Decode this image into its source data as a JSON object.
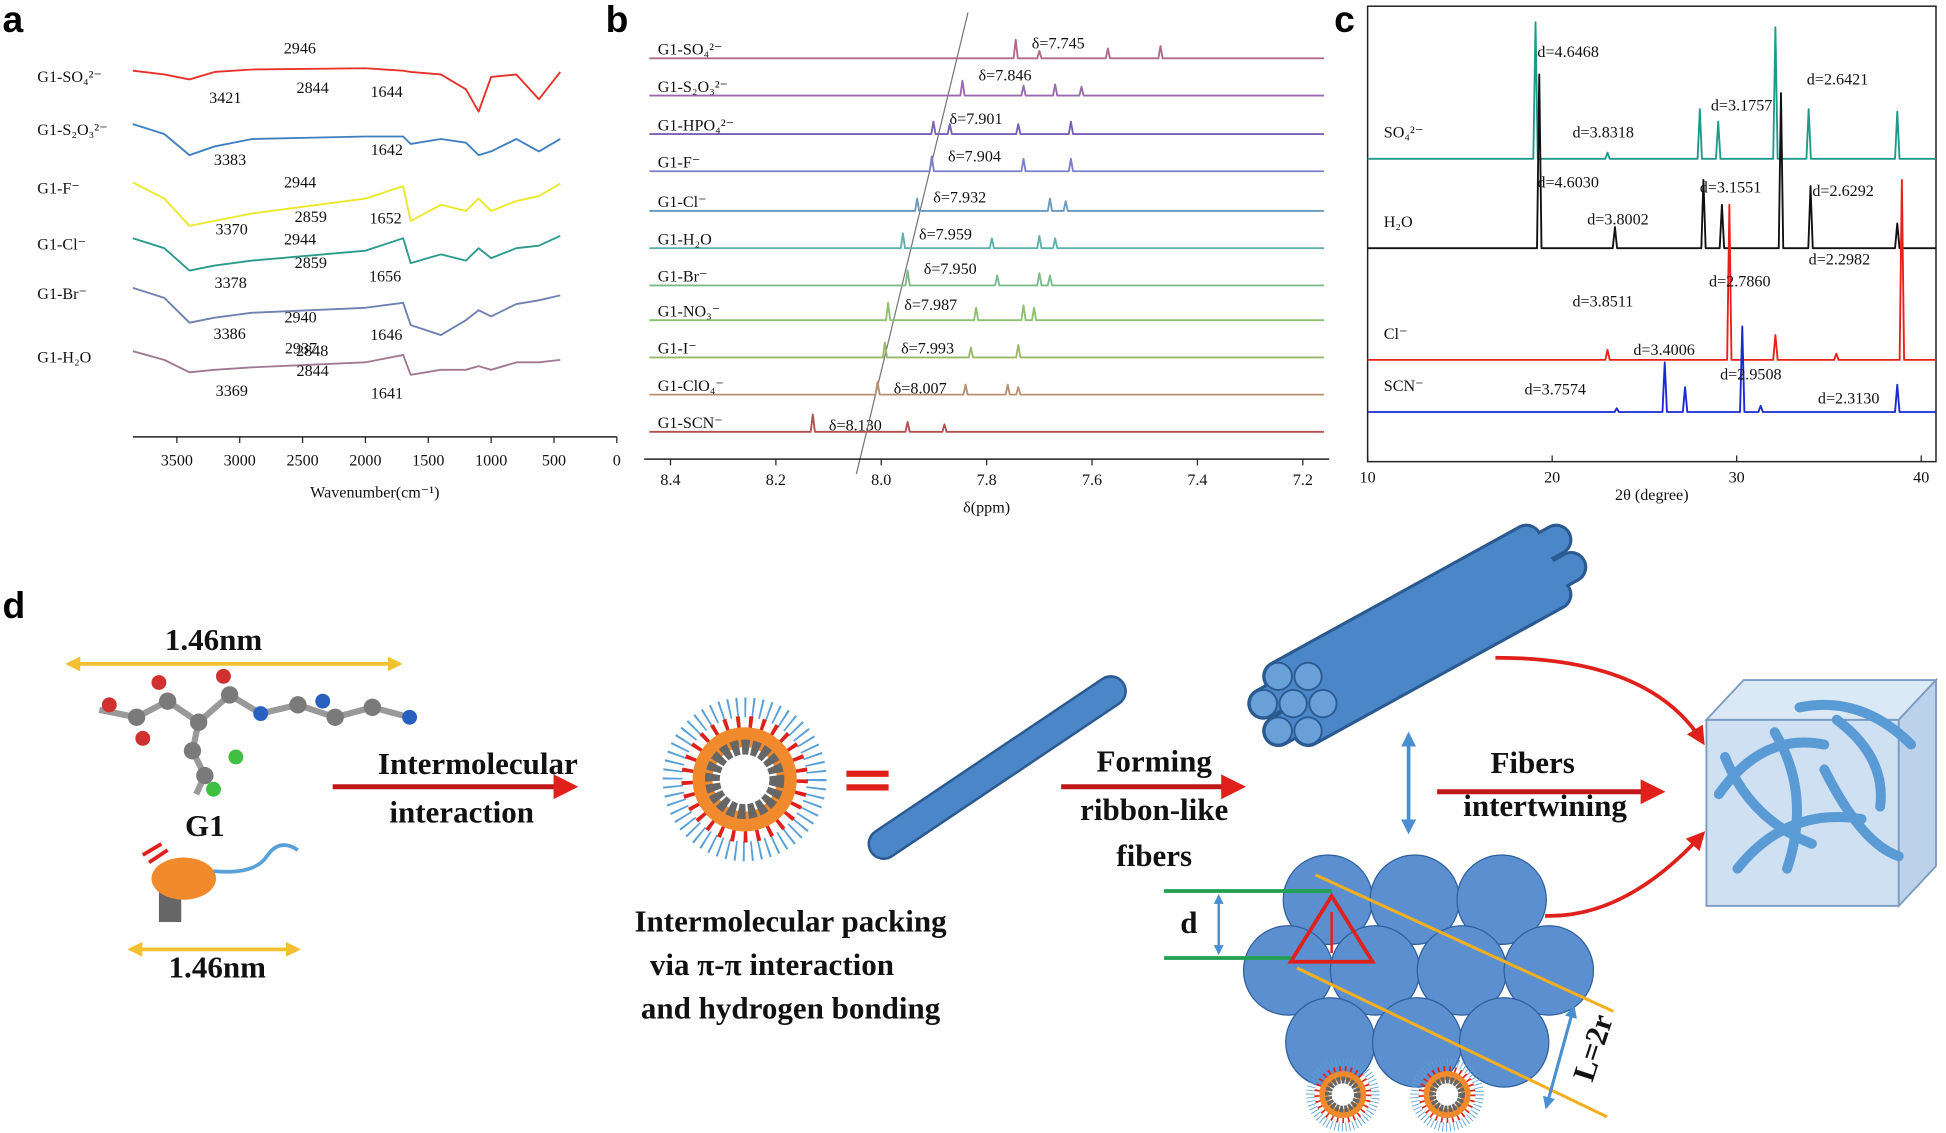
{
  "panel_labels": [
    "a",
    "b",
    "c",
    "d"
  ],
  "chart_data": [
    {
      "type": "line",
      "xlabel": "Wavenumber(cm⁻¹)",
      "xlim": [
        3850,
        0
      ],
      "ylim": [
        0,
        330
      ],
      "xticks": [
        3500,
        3000,
        2500,
        2000,
        1500,
        1000,
        500,
        0
      ],
      "x": [
        3850,
        3600,
        3400,
        3200,
        2900,
        2000,
        1700,
        1640,
        1400,
        1200,
        1100,
        1000,
        800,
        620,
        450
      ],
      "series": [
        {
          "name": "G1-SO₄²⁻",
          "color": "#e8302a",
          "values": [
            295,
            292,
            288,
            294,
            296,
            297,
            295,
            294,
            292,
            280,
            262,
            290,
            292,
            272,
            294
          ]
        },
        {
          "name": "G1-S₂O₃²⁻",
          "color": "#3f7fbf",
          "values": [
            252,
            244,
            227,
            234,
            240,
            242,
            242,
            236,
            240,
            237,
            227,
            230,
            240,
            230,
            240
          ]
        },
        {
          "name": "G1-F⁻",
          "color": "#e9e82a",
          "values": [
            205,
            192,
            170,
            174,
            180,
            192,
            202,
            174,
            187,
            182,
            192,
            182,
            190,
            194,
            204
          ]
        },
        {
          "name": "G1-Cl⁻",
          "color": "#2a9a8a",
          "values": [
            160,
            152,
            134,
            138,
            142,
            150,
            160,
            140,
            147,
            142,
            152,
            144,
            152,
            154,
            162
          ]
        },
        {
          "name": "G1-Br⁻",
          "color": "#7080b0",
          "values": [
            120,
            112,
            92,
            96,
            100,
            104,
            108,
            90,
            82,
            94,
            102,
            97,
            107,
            110,
            114
          ]
        },
        {
          "name": "G1-H₂O",
          "color": "#a07890",
          "values": [
            69,
            62,
            52,
            54,
            56,
            60,
            66,
            50,
            54,
            54,
            57,
            54,
            60,
            60,
            62
          ]
        }
      ],
      "annotations": [
        {
          "x": 2946,
          "y": 312
        },
        {
          "x": 3421,
          "y": 272
        },
        {
          "x": 2844,
          "y": 280
        },
        {
          "x": 1644,
          "y": 277
        },
        {
          "x": 3383,
          "y": 222
        },
        {
          "x": 1642,
          "y": 230
        },
        {
          "x": 2944,
          "y": 204
        },
        {
          "x": 3370,
          "y": 166
        },
        {
          "x": 2859,
          "y": 176
        },
        {
          "x": 1652,
          "y": 175
        },
        {
          "x": 2944,
          "y": 158
        },
        {
          "x": 3378,
          "y": 123
        },
        {
          "x": 2859,
          "y": 139
        },
        {
          "x": 1656,
          "y": 128
        },
        {
          "x": 2940,
          "y": 95
        },
        {
          "x": 3386,
          "y": 82
        },
        {
          "x": 2848,
          "y": 68
        },
        {
          "x": 1646,
          "y": 81
        },
        {
          "x": 2937,
          "y": 70
        },
        {
          "x": 3369,
          "y": 36
        },
        {
          "x": 2844,
          "y": 52
        },
        {
          "x": 1641,
          "y": 34
        }
      ]
    },
    {
      "type": "line",
      "xlabel": "δ(ppm)",
      "xlim": [
        8.45,
        7.15
      ],
      "ylim": [
        0,
        345
      ],
      "xticks": [
        8.4,
        8.2,
        {
          "value": 8,
          "label": "8.0"
        },
        7.8,
        7.6,
        7.4,
        7.2
      ],
      "series": [
        {
          "name": "G1-SO₄²⁻",
          "color": "#b06a8a",
          "x": [
            8.44,
            7.749,
            7.745,
            7.741,
            7.704,
            7.7,
            7.696,
            7.574,
            7.57,
            7.566,
            7.474,
            7.47,
            7.466,
            7.16
          ],
          "values": [
            323,
            323,
            338,
            323,
            323,
            329,
            323,
            323,
            331,
            323,
            323,
            333,
            323,
            323
          ]
        },
        {
          "name": "G1-S₂O₃²⁻",
          "color": "#9a6ab0",
          "x": [
            8.44,
            7.85,
            7.846,
            7.842,
            7.734,
            7.73,
            7.726,
            7.674,
            7.67,
            7.666,
            7.624,
            7.62,
            7.616,
            7.16
          ],
          "values": [
            293,
            293,
            305,
            293,
            293,
            301,
            293,
            293,
            302,
            293,
            293,
            300,
            293,
            293
          ]
        },
        {
          "name": "G1-HPO₄²⁻",
          "color": "#7a5fb5",
          "x": [
            8.44,
            7.905,
            7.901,
            7.897,
            7.874,
            7.87,
            7.866,
            7.744,
            7.74,
            7.736,
            7.644,
            7.64,
            7.636,
            7.16
          ],
          "values": [
            262,
            262,
            272,
            262,
            262,
            270,
            262,
            262,
            270,
            262,
            262,
            272,
            262,
            262
          ]
        },
        {
          "name": "G1-F⁻",
          "color": "#7b7fc8",
          "x": [
            8.44,
            7.908,
            7.904,
            7.9,
            7.734,
            7.73,
            7.726,
            7.644,
            7.64,
            7.636,
            7.16
          ],
          "values": [
            232,
            232,
            244,
            232,
            232,
            242,
            232,
            232,
            242,
            232,
            232
          ]
        },
        {
          "name": "G1-Cl⁻",
          "color": "#6a9ac0",
          "x": [
            8.44,
            7.936,
            7.932,
            7.928,
            7.684,
            7.68,
            7.676,
            7.654,
            7.65,
            7.646,
            7.16
          ],
          "values": [
            200,
            200,
            210,
            200,
            200,
            210,
            200,
            200,
            208,
            200,
            200
          ]
        },
        {
          "name": "G1-H₂O",
          "color": "#5fb0a8",
          "x": [
            8.44,
            7.963,
            7.959,
            7.955,
            7.794,
            7.79,
            7.786,
            7.704,
            7.7,
            7.696,
            7.674,
            7.67,
            7.666,
            7.16
          ],
          "values": [
            170,
            170,
            182,
            170,
            170,
            178,
            170,
            170,
            180,
            170,
            170,
            178,
            170,
            170
          ]
        },
        {
          "name": "G1-Br⁻",
          "color": "#7cbc8a",
          "x": [
            8.44,
            7.954,
            7.95,
            7.946,
            7.784,
            7.78,
            7.776,
            7.704,
            7.7,
            7.696,
            7.684,
            7.68,
            7.676,
            7.16
          ],
          "values": [
            140,
            140,
            152,
            140,
            140,
            148,
            140,
            140,
            150,
            140,
            140,
            148,
            140,
            140
          ]
        },
        {
          "name": "G1-NO₃⁻",
          "color": "#8cc070",
          "x": [
            8.44,
            7.991,
            7.987,
            7.983,
            7.824,
            7.82,
            7.816,
            7.734,
            7.73,
            7.726,
            7.714,
            7.71,
            7.706,
            7.16
          ],
          "values": [
            112,
            112,
            126,
            112,
            112,
            122,
            112,
            112,
            124,
            112,
            112,
            122,
            112,
            112
          ]
        },
        {
          "name": "G1-I⁻",
          "color": "#9ab868",
          "x": [
            8.44,
            7.997,
            7.993,
            7.989,
            7.834,
            7.83,
            7.826,
            7.744,
            7.74,
            7.736,
            7.16
          ],
          "values": [
            82,
            82,
            94,
            82,
            82,
            90,
            82,
            82,
            92,
            82,
            82
          ]
        },
        {
          "name": "G1-ClO₄⁻",
          "color": "#b89070",
          "x": [
            8.44,
            8.011,
            8.007,
            8.003,
            7.844,
            7.84,
            7.836,
            7.764,
            7.76,
            7.756,
            7.744,
            7.74,
            7.736,
            7.16
          ],
          "values": [
            52,
            52,
            62,
            52,
            52,
            60,
            52,
            52,
            60,
            52,
            52,
            58,
            52,
            52
          ]
        },
        {
          "name": "G1-SCN⁻",
          "color": "#b05050",
          "x": [
            8.44,
            8.134,
            8.13,
            8.126,
            7.954,
            7.95,
            7.946,
            7.884,
            7.88,
            7.876,
            7.16
          ],
          "values": [
            22,
            22,
            36,
            22,
            22,
            30,
            22,
            22,
            28,
            22,
            22
          ]
        }
      ],
      "annotations": [
        {
          "x": 7.745,
          "y": 334,
          "label": "δ=7.745"
        },
        {
          "x": 7.846,
          "y": 308,
          "label": "δ=7.846"
        },
        {
          "x": 7.901,
          "y": 273,
          "label": "δ=7.901"
        },
        {
          "x": 7.904,
          "y": 243,
          "label": "δ=7.904"
        },
        {
          "x": 7.932,
          "y": 210,
          "label": "δ=7.932"
        },
        {
          "x": 7.959,
          "y": 180,
          "label": "δ=7.959"
        },
        {
          "x": 7.95,
          "y": 152,
          "label": "δ=7.950"
        },
        {
          "x": 7.987,
          "y": 123,
          "label": "δ=7.987"
        },
        {
          "x": 7.993,
          "y": 88,
          "label": "δ=7.993"
        },
        {
          "x": 8.007,
          "y": 56,
          "label": "δ=8.007"
        },
        {
          "x": 8.13,
          "y": 26,
          "label": "δ=8.130"
        }
      ]
    },
    {
      "type": "line",
      "xlabel": "2θ (degree)",
      "xlim": [
        10,
        40.8
      ],
      "ylim": [
        0,
        367
      ],
      "frame": true,
      "xticks": [
        10,
        20,
        30,
        40
      ],
      "series": [
        {
          "name": "SO₄²⁻",
          "color": "#1f9a8a",
          "x": [
            10,
            18.98,
            19.1,
            19.22,
            22.88,
            23,
            23.12,
            27.88,
            28,
            28.12,
            28.88,
            29,
            29.12,
            31.98,
            32.1,
            32.22,
            33.78,
            33.9,
            34.02,
            38.58,
            38.7,
            38.82,
            40.8
          ],
          "values": [
            244,
            244,
            354,
            244,
            244,
            249,
            244,
            244,
            284,
            244,
            244,
            274,
            244,
            244,
            350,
            244,
            244,
            284,
            244,
            244,
            282,
            244,
            244
          ]
        },
        {
          "name": "H₂O",
          "color": "#111111",
          "x": [
            10,
            19.18,
            19.3,
            19.42,
            23.28,
            23.4,
            23.52,
            28.08,
            28.2,
            28.32,
            29.08,
            29.2,
            29.32,
            32.28,
            32.4,
            32.52,
            33.88,
            34,
            34.12,
            38.58,
            38.7,
            38.82,
            40.8
          ],
          "values": [
            172,
            172,
            312,
            172,
            172,
            189,
            172,
            172,
            227,
            172,
            172,
            207,
            172,
            172,
            297,
            172,
            172,
            222,
            172,
            172,
            192,
            172,
            172
          ]
        },
        {
          "name": "Cl⁻",
          "color": "#e8201a",
          "x": [
            10,
            22.88,
            23,
            23.12,
            29.48,
            29.6,
            29.72,
            31.98,
            32.1,
            32.22,
            35.28,
            35.4,
            35.52,
            38.83,
            38.95,
            39.07,
            40.8
          ],
          "values": [
            82,
            82,
            90,
            82,
            82,
            207,
            82,
            82,
            102,
            82,
            82,
            87,
            82,
            82,
            227,
            82,
            82
          ]
        },
        {
          "name": "SCN⁻",
          "color": "#1a2ad0",
          "x": [
            10,
            23.38,
            23.5,
            23.62,
            25.98,
            26.1,
            26.22,
            27.08,
            27.2,
            27.32,
            30.18,
            30.3,
            30.42,
            31.18,
            31.3,
            31.42,
            38.58,
            38.7,
            38.82,
            40.8
          ],
          "values": [
            40,
            40,
            43,
            40,
            40,
            80,
            40,
            40,
            60,
            40,
            40,
            109,
            40,
            40,
            45,
            40,
            40,
            62,
            40,
            40
          ]
        }
      ],
      "annotations": [
        {
          "x": 19.2,
          "y": 329,
          "label": "d=4.6468"
        },
        {
          "x": 21.1,
          "y": 264,
          "label": "d=3.8318"
        },
        {
          "x": 28.6,
          "y": 286,
          "label": "d=3.1757"
        },
        {
          "x": 33.8,
          "y": 307,
          "label": "d=2.6421"
        },
        {
          "x": 19.2,
          "y": 224,
          "label": "d=4.6030"
        },
        {
          "x": 21.9,
          "y": 194,
          "label": "d=3.8002"
        },
        {
          "x": 28,
          "y": 220,
          "label": "d=3.1551"
        },
        {
          "x": 34.1,
          "y": 217,
          "label": "d=2.6292"
        },
        {
          "x": 33.9,
          "y": 162,
          "label": "d=2.2982"
        },
        {
          "x": 21.1,
          "y": 128,
          "label": "d=3.8511"
        },
        {
          "x": 28.5,
          "y": 144,
          "label": "d=2.7860"
        },
        {
          "x": 24.4,
          "y": 89,
          "label": "d=3.4006"
        },
        {
          "x": 18.5,
          "y": 57,
          "label": "d=3.7574"
        },
        {
          "x": 29.1,
          "y": 69,
          "label": "d=2.9508"
        },
        {
          "x": 34.4,
          "y": 50,
          "label": "d=2.3130"
        }
      ]
    }
  ],
  "diagram": {
    "molecule": {
      "label": "G1",
      "length_labels": [
        "1.46nm",
        "1.46nm"
      ]
    },
    "steps": [
      {
        "lines": [
          "Intermolecular",
          "interaction"
        ]
      },
      {
        "lines": [
          "Intermolecular packing",
          "via π-π interaction",
          "and hydrogen bonding"
        ]
      },
      {
        "lines": [
          "Forming",
          "ribbon-like",
          "fibers"
        ]
      },
      {
        "lines": [
          "Fibers",
          "intertwining"
        ]
      }
    ],
    "packing": {
      "spacing": "d",
      "length": "L=2r"
    }
  }
}
